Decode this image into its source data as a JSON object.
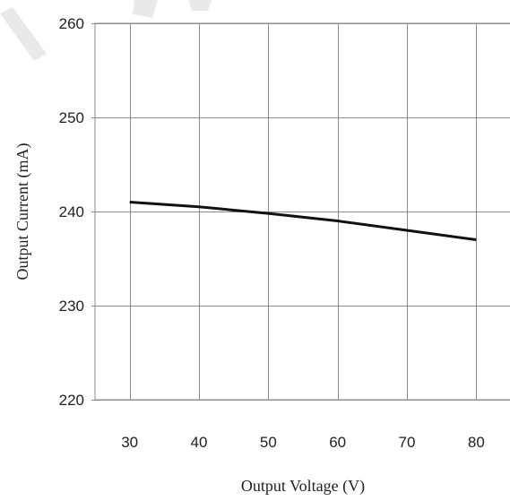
{
  "chart_data": {
    "type": "line",
    "title": "",
    "xlabel": "Output Voltage (V)",
    "ylabel": "Output Current (mA)",
    "xlim": [
      25,
      85
    ],
    "ylim": [
      220,
      260
    ],
    "xticks": [
      30,
      40,
      50,
      60,
      70,
      80
    ],
    "yticks": [
      220,
      230,
      240,
      250,
      260
    ],
    "x_tick_labels": [
      "30",
      "40",
      "50",
      "60",
      "70",
      "80"
    ],
    "y_tick_labels": [
      "220",
      "230",
      "240",
      "250",
      "260"
    ],
    "grid": true,
    "legend": "none",
    "series": [
      {
        "x": [
          30,
          40,
          50,
          60,
          70,
          80
        ],
        "values": [
          241.0,
          240.5,
          239.8,
          239.0,
          238.0,
          237.0
        ],
        "color": "#111111"
      }
    ],
    "colors": {
      "grid": "#8c8c8c",
      "axis": "#8c8c8c",
      "line": "#111111"
    }
  }
}
